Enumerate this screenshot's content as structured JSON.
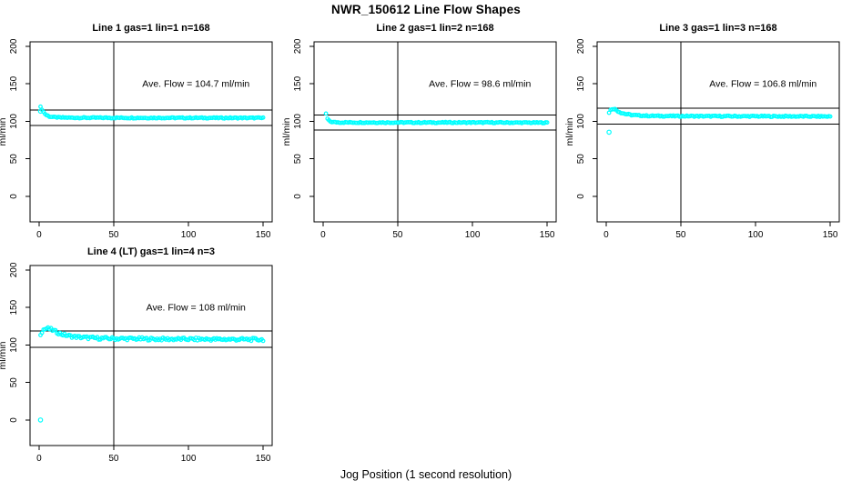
{
  "page": {
    "main_title": "NWR_150612  Line Flow Shapes",
    "x_axis_label": "Jog Position (1 second resolution)",
    "colors": {
      "background": "#ffffff",
      "points": "#00ffff",
      "lines": "#000000",
      "text": "#000000"
    }
  },
  "chart_data": [
    {
      "type": "scatter",
      "title": "Line 1 gas=1 lin=1 n=168",
      "annotation": "Ave. Flow =  104.7  ml/min",
      "ave_flow": 104.7,
      "n": 168,
      "ylabel": "ml/min",
      "y_ticks": [
        0,
        50,
        100,
        150,
        200
      ],
      "x_ticks": [
        0,
        50,
        100,
        150
      ],
      "xlim": [
        -6,
        156
      ],
      "ylim": [
        -34,
        206
      ],
      "ref_line_upper": 115.2,
      "ref_line_lower": 94.2,
      "vline_x": 50,
      "annotation_pos": [
        105,
        150
      ],
      "curve": [
        [
          1,
          119
        ],
        [
          2,
          116
        ],
        [
          3,
          112.5
        ],
        [
          4,
          110
        ],
        [
          5,
          108.3
        ],
        [
          7,
          106.5
        ],
        [
          10,
          105.5
        ],
        [
          15,
          105
        ],
        [
          25,
          104.8
        ],
        [
          50,
          104.7
        ],
        [
          100,
          104.6
        ],
        [
          150,
          104.5
        ]
      ],
      "extra_points": [
        [
          1,
          113.5
        ]
      ],
      "jitter": 0.7
    },
    {
      "type": "scatter",
      "title": "Line 2 gas=1 lin=2 n=168",
      "annotation": "Ave. Flow =  98.6  ml/min",
      "ave_flow": 98.6,
      "n": 168,
      "ylabel": "ml/min",
      "y_ticks": [
        0,
        50,
        100,
        150,
        200
      ],
      "x_ticks": [
        0,
        50,
        100,
        150
      ],
      "xlim": [
        -6,
        156
      ],
      "ylim": [
        -34,
        206
      ],
      "ref_line_upper": 108.5,
      "ref_line_lower": 88.7,
      "vline_x": 50,
      "annotation_pos": [
        105,
        150
      ],
      "curve": [
        [
          2,
          110
        ],
        [
          3,
          103.5
        ],
        [
          4,
          100.8
        ],
        [
          5,
          99.6
        ],
        [
          6,
          99.2
        ],
        [
          8,
          98.8
        ],
        [
          11,
          98.6
        ],
        [
          16,
          98.5
        ],
        [
          25,
          98.5
        ],
        [
          50,
          98.4
        ],
        [
          100,
          98.4
        ],
        [
          150,
          98.2
        ]
      ],
      "extra_points": [],
      "jitter": 0.7
    },
    {
      "type": "scatter",
      "title": "Line 3 gas=1 lin=3 n=168",
      "annotation": "Ave. Flow =  106.8  ml/min",
      "ave_flow": 106.8,
      "n": 168,
      "ylabel": "ml/min",
      "y_ticks": [
        0,
        50,
        100,
        150,
        200
      ],
      "x_ticks": [
        0,
        50,
        100,
        150
      ],
      "xlim": [
        -6,
        156
      ],
      "ylim": [
        -34,
        206
      ],
      "ref_line_upper": 117.5,
      "ref_line_lower": 96.1,
      "vline_x": 50,
      "annotation_pos": [
        105,
        150
      ],
      "curve": [
        [
          2,
          112
        ],
        [
          3,
          115
        ],
        [
          4,
          116.5
        ],
        [
          5,
          116.8
        ],
        [
          6,
          116
        ],
        [
          8,
          113.5
        ],
        [
          10,
          111.5
        ],
        [
          13,
          109.8
        ],
        [
          17,
          108.5
        ],
        [
          22,
          107.8
        ],
        [
          30,
          107.2
        ],
        [
          45,
          107
        ],
        [
          70,
          106.8
        ],
        [
          110,
          106.7
        ],
        [
          150,
          106.5
        ]
      ],
      "extra_points": [
        [
          2,
          85.5
        ]
      ],
      "jitter": 0.8
    },
    {
      "type": "scatter",
      "title": "Line 4 (LT) gas=1 lin=4 n=3",
      "annotation": "Ave. Flow =  108  ml/min",
      "ave_flow": 108,
      "n": 3,
      "ylabel": "ml/min",
      "y_ticks": [
        0,
        50,
        100,
        150,
        200
      ],
      "x_ticks": [
        0,
        50,
        100,
        150
      ],
      "xlim": [
        -6,
        156
      ],
      "ylim": [
        -34,
        206
      ],
      "ref_line_upper": 118.8,
      "ref_line_lower": 97.2,
      "vline_x": 50,
      "annotation_pos": [
        105,
        150
      ],
      "curve": [
        [
          1,
          115
        ],
        [
          2,
          118
        ],
        [
          3,
          120.5
        ],
        [
          5,
          122
        ],
        [
          7,
          121.5
        ],
        [
          9,
          120
        ],
        [
          12,
          117
        ],
        [
          15,
          114.5
        ],
        [
          19,
          112.5
        ],
        [
          24,
          111
        ],
        [
          30,
          110
        ],
        [
          40,
          109
        ],
        [
          55,
          108.5
        ],
        [
          75,
          108
        ],
        [
          100,
          107.8
        ],
        [
          125,
          107.6
        ],
        [
          150,
          107.3
        ]
      ],
      "extra_points": [
        [
          1,
          0
        ]
      ],
      "jitter": 1.9
    }
  ]
}
